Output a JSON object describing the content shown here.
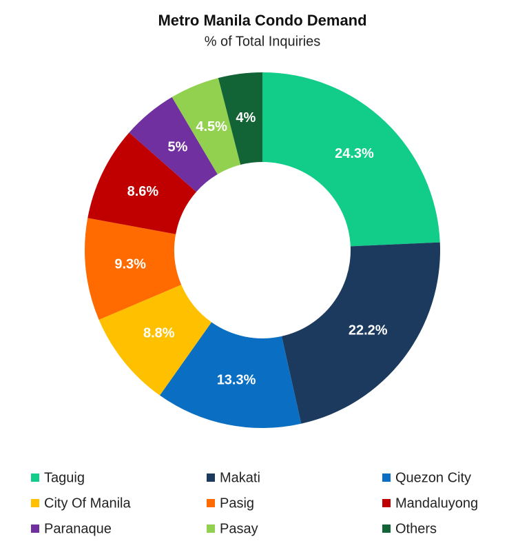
{
  "chart_data": {
    "type": "donut",
    "title": "Metro Manila Condo Demand",
    "subtitle": "% of Total Inquiries",
    "categories": [
      "Taguig",
      "Makati",
      "Quezon City",
      "City Of Manila",
      "Pasig",
      "Mandaluyong",
      "Paranaque",
      "Pasay",
      "Others"
    ],
    "values": [
      24.3,
      22.2,
      13.3,
      8.8,
      9.3,
      8.6,
      5,
      4.5,
      4
    ],
    "value_labels": [
      "24.3%",
      "22.2%",
      "13.3%",
      "8.8%",
      "9.3%",
      "8.6%",
      "5%",
      "4.5%",
      "4%"
    ],
    "colors": [
      "#12cd89",
      "#1b3a5e",
      "#0a6fc2",
      "#ffc000",
      "#ff6b00",
      "#c00000",
      "#7030a0",
      "#92d050",
      "#126335"
    ]
  }
}
